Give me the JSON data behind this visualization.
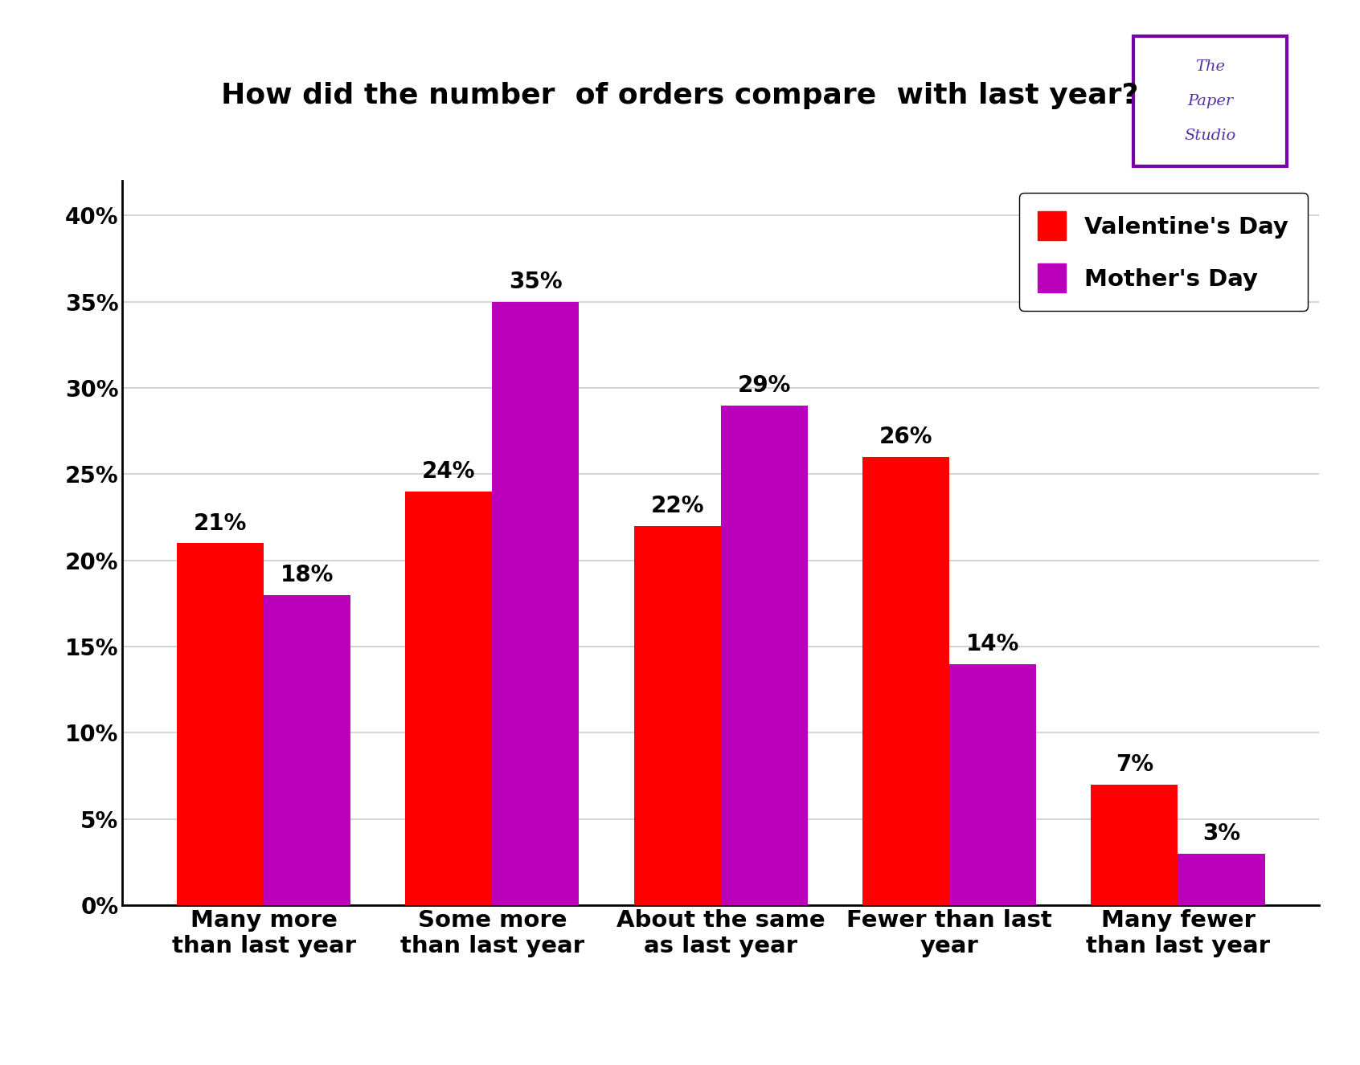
{
  "title": "How did the number  of orders compare  with last year?",
  "categories": [
    "Many more\nthan last year",
    "Some more\nthan last year",
    "About the same\nas last year",
    "Fewer than last\nyear",
    "Many fewer\nthan last year"
  ],
  "valentines_values": [
    21,
    24,
    22,
    26,
    7
  ],
  "mothers_values": [
    18,
    35,
    29,
    14,
    3
  ],
  "valentines_color": "#FF0000",
  "mothers_color": "#BB00BB",
  "bar_width": 0.38,
  "ylim": [
    0,
    0.42
  ],
  "yticks": [
    0.0,
    0.05,
    0.1,
    0.15,
    0.2,
    0.25,
    0.3,
    0.35,
    0.4
  ],
  "ytick_labels": [
    "0%",
    "5%",
    "10%",
    "15%",
    "20%",
    "25%",
    "30%",
    "35%",
    "40%"
  ],
  "legend_valentine": "Valentine's Day",
  "legend_mothers": "Mother's Day",
  "title_fontsize": 26,
  "tick_fontsize": 20,
  "label_fontsize": 21,
  "bar_label_fontsize": 20,
  "legend_fontsize": 21,
  "background_color": "#FFFFFF",
  "grid_color": "#CCCCCC"
}
